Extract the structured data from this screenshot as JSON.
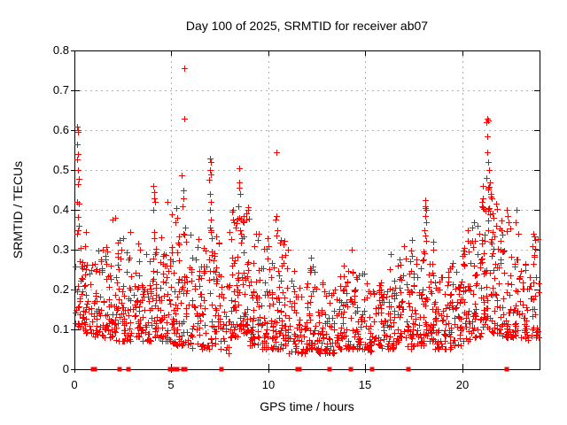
{
  "chart_data": {
    "type": "scatter",
    "title": "Day 100 of 2025, SRMTID for receiver ab07",
    "xlabel": "GPS time / hours",
    "ylabel": "SRMTID / TECUs",
    "xlim": [
      0,
      24
    ],
    "ylim": [
      0,
      0.8
    ],
    "xticks": [
      0,
      5,
      10,
      15,
      20
    ],
    "yticks": [
      0,
      0.1,
      0.2,
      0.3,
      0.4,
      0.5,
      0.6,
      0.7,
      0.8
    ],
    "grid": true,
    "legend": "none",
    "marker": "plus",
    "colors": {
      "points": "#ff0000",
      "grid": "#b0b0b0",
      "axis": "#000000",
      "background": "#ffffff"
    },
    "seed": 20250410,
    "bulk_bins": [
      [
        0.0,
        0.5,
        35,
        0.1,
        0.33
      ],
      [
        0.5,
        1.0,
        30,
        0.09,
        0.28
      ],
      [
        1.0,
        1.5,
        35,
        0.08,
        0.3
      ],
      [
        1.5,
        2.0,
        35,
        0.08,
        0.31
      ],
      [
        2.0,
        2.5,
        35,
        0.07,
        0.33
      ],
      [
        2.5,
        3.0,
        35,
        0.07,
        0.3
      ],
      [
        3.0,
        3.5,
        35,
        0.08,
        0.29
      ],
      [
        3.5,
        4.0,
        35,
        0.07,
        0.3
      ],
      [
        4.0,
        4.5,
        40,
        0.08,
        0.36
      ],
      [
        4.5,
        5.0,
        35,
        0.07,
        0.31
      ],
      [
        5.0,
        5.5,
        40,
        0.06,
        0.36
      ],
      [
        5.5,
        6.0,
        35,
        0.06,
        0.38
      ],
      [
        6.0,
        6.5,
        35,
        0.05,
        0.34
      ],
      [
        6.5,
        7.0,
        30,
        0.05,
        0.31
      ],
      [
        7.0,
        7.5,
        40,
        0.06,
        0.35
      ],
      [
        7.5,
        8.0,
        25,
        0.04,
        0.25
      ],
      [
        8.0,
        8.5,
        45,
        0.08,
        0.4
      ],
      [
        8.5,
        9.0,
        45,
        0.09,
        0.42
      ],
      [
        9.0,
        9.5,
        35,
        0.06,
        0.3
      ],
      [
        9.5,
        10.0,
        35,
        0.05,
        0.31
      ],
      [
        10.0,
        10.5,
        35,
        0.05,
        0.28
      ],
      [
        10.5,
        11.0,
        40,
        0.05,
        0.33
      ],
      [
        11.0,
        11.5,
        30,
        0.04,
        0.25
      ],
      [
        11.5,
        12.0,
        30,
        0.04,
        0.22
      ],
      [
        12.0,
        12.5,
        35,
        0.05,
        0.26
      ],
      [
        12.5,
        13.0,
        35,
        0.04,
        0.22
      ],
      [
        13.0,
        13.5,
        30,
        0.04,
        0.2
      ],
      [
        13.5,
        14.0,
        35,
        0.05,
        0.24
      ],
      [
        14.0,
        14.5,
        35,
        0.05,
        0.27
      ],
      [
        14.5,
        15.0,
        35,
        0.05,
        0.25
      ],
      [
        15.0,
        15.5,
        30,
        0.04,
        0.22
      ],
      [
        15.5,
        16.0,
        35,
        0.05,
        0.22
      ],
      [
        16.0,
        16.5,
        35,
        0.05,
        0.27
      ],
      [
        16.5,
        17.0,
        35,
        0.06,
        0.29
      ],
      [
        17.0,
        17.5,
        35,
        0.05,
        0.3
      ],
      [
        17.5,
        18.0,
        35,
        0.06,
        0.28
      ],
      [
        18.0,
        18.5,
        40,
        0.07,
        0.36
      ],
      [
        18.5,
        19.0,
        35,
        0.05,
        0.25
      ],
      [
        19.0,
        19.5,
        35,
        0.05,
        0.26
      ],
      [
        19.5,
        20.0,
        35,
        0.06,
        0.29
      ],
      [
        20.0,
        20.5,
        40,
        0.07,
        0.33
      ],
      [
        20.5,
        21.0,
        40,
        0.08,
        0.36
      ],
      [
        21.0,
        21.5,
        50,
        0.1,
        0.46
      ],
      [
        21.5,
        22.0,
        45,
        0.09,
        0.43
      ],
      [
        22.0,
        22.5,
        40,
        0.08,
        0.4
      ],
      [
        22.5,
        23.0,
        35,
        0.08,
        0.34
      ],
      [
        23.0,
        23.5,
        30,
        0.07,
        0.3
      ],
      [
        23.5,
        24.0,
        30,
        0.08,
        0.34
      ]
    ],
    "spike_points": [
      [
        0.13,
        0.61
      ],
      [
        0.16,
        0.6
      ],
      [
        0.19,
        0.595
      ],
      [
        0.15,
        0.565
      ],
      [
        0.2,
        0.54
      ],
      [
        0.14,
        0.527
      ],
      [
        0.17,
        0.5
      ],
      [
        0.22,
        0.477
      ],
      [
        0.18,
        0.465
      ],
      [
        0.15,
        0.42
      ],
      [
        0.21,
        0.415
      ],
      [
        0.17,
        0.382
      ],
      [
        0.24,
        0.36
      ],
      [
        0.2,
        0.35
      ],
      [
        0.13,
        0.34
      ],
      [
        0.6,
        0.345
      ],
      [
        0.55,
        0.31
      ],
      [
        1.95,
        0.375
      ],
      [
        2.08,
        0.38
      ],
      [
        2.5,
        0.33
      ],
      [
        2.9,
        0.345
      ],
      [
        3.3,
        0.315
      ],
      [
        3.4,
        0.3
      ],
      [
        4.08,
        0.46
      ],
      [
        4.12,
        0.445
      ],
      [
        4.1,
        0.43
      ],
      [
        4.15,
        0.42
      ],
      [
        4.05,
        0.4
      ],
      [
        4.12,
        0.345
      ],
      [
        4.1,
        0.33
      ],
      [
        4.8,
        0.42
      ],
      [
        5.05,
        0.39
      ],
      [
        5.25,
        0.405
      ],
      [
        5.3,
        0.38
      ],
      [
        5.22,
        0.37
      ],
      [
        5.55,
        0.487
      ],
      [
        5.65,
        0.755
      ],
      [
        5.66,
        0.63
      ],
      [
        5.6,
        0.45
      ],
      [
        5.62,
        0.43
      ],
      [
        5.58,
        0.41
      ],
      [
        7.0,
        0.53
      ],
      [
        7.05,
        0.52
      ],
      [
        6.98,
        0.5
      ],
      [
        7.02,
        0.49
      ],
      [
        6.96,
        0.475
      ],
      [
        7.0,
        0.44
      ],
      [
        7.05,
        0.42
      ],
      [
        6.98,
        0.4
      ],
      [
        7.03,
        0.375
      ],
      [
        7.0,
        0.355
      ],
      [
        7.08,
        0.33
      ],
      [
        8.2,
        0.4
      ],
      [
        8.25,
        0.37
      ],
      [
        8.5,
        0.505
      ],
      [
        8.52,
        0.47
      ],
      [
        8.48,
        0.455
      ],
      [
        8.55,
        0.44
      ],
      [
        8.45,
        0.41
      ],
      [
        8.5,
        0.38
      ],
      [
        8.55,
        0.35
      ],
      [
        8.6,
        0.34
      ],
      [
        9.3,
        0.31
      ],
      [
        9.35,
        0.34
      ],
      [
        9.45,
        0.325
      ],
      [
        9.5,
        0.34
      ],
      [
        9.95,
        0.33
      ],
      [
        10.0,
        0.31
      ],
      [
        10.4,
        0.545
      ],
      [
        10.42,
        0.385
      ],
      [
        10.38,
        0.375
      ],
      [
        10.45,
        0.35
      ],
      [
        10.4,
        0.335
      ],
      [
        11.0,
        0.3
      ],
      [
        12.2,
        0.28
      ],
      [
        13.9,
        0.26
      ],
      [
        14.3,
        0.3
      ],
      [
        16.3,
        0.29
      ],
      [
        17.0,
        0.31
      ],
      [
        17.4,
        0.325
      ],
      [
        18.1,
        0.425
      ],
      [
        18.12,
        0.41
      ],
      [
        18.08,
        0.405
      ],
      [
        18.14,
        0.4
      ],
      [
        18.1,
        0.385
      ],
      [
        18.16,
        0.37
      ],
      [
        18.06,
        0.35
      ],
      [
        18.1,
        0.335
      ],
      [
        20.3,
        0.35
      ],
      [
        20.6,
        0.37
      ],
      [
        20.8,
        0.36
      ],
      [
        21.3,
        0.63
      ],
      [
        21.34,
        0.625
      ],
      [
        21.27,
        0.62
      ],
      [
        21.32,
        0.585
      ],
      [
        21.3,
        0.545
      ],
      [
        21.33,
        0.52
      ],
      [
        21.4,
        0.5
      ],
      [
        21.26,
        0.48
      ],
      [
        21.44,
        0.47
      ],
      [
        21.37,
        0.455
      ],
      [
        21.5,
        0.44
      ],
      [
        21.55,
        0.43
      ],
      [
        22.3,
        0.4
      ],
      [
        22.36,
        0.385
      ],
      [
        22.42,
        0.37
      ],
      [
        22.8,
        0.4
      ],
      [
        22.76,
        0.37
      ],
      [
        22.9,
        0.34
      ],
      [
        23.7,
        0.34
      ],
      [
        23.75,
        0.325
      ],
      [
        23.65,
        0.31
      ]
    ],
    "zero_markers_x": [
      0.95,
      1.05,
      2.35,
      2.8,
      4.95,
      5.05,
      5.25,
      5.32,
      5.6,
      5.7,
      7.6,
      11.5,
      11.62,
      13.15,
      14.25,
      15.35,
      17.25,
      22.3
    ]
  }
}
